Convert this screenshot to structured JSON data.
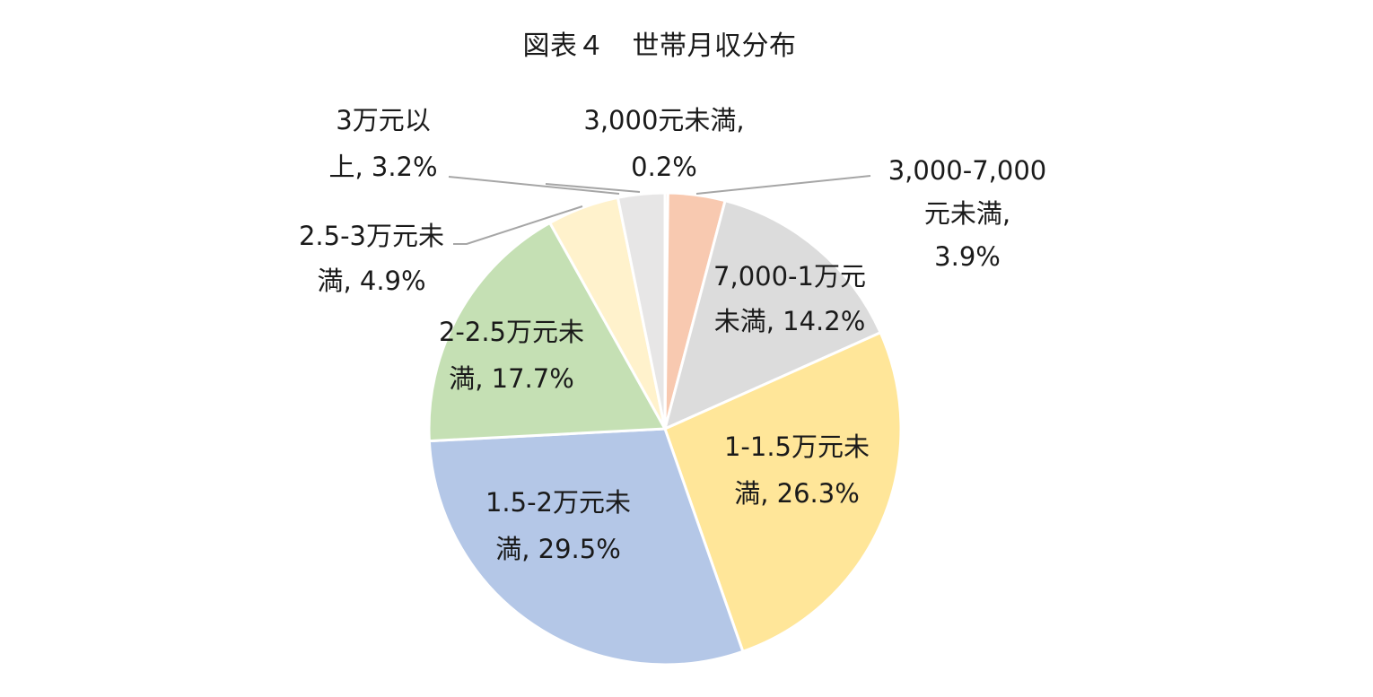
{
  "chart_data": {
    "type": "pie",
    "title": "図表４　世帯月収分布",
    "unit": "%",
    "start_angle_deg": 0,
    "direction": "clockwise",
    "slices": [
      {
        "category": "3,000元未満",
        "value": 0.2,
        "color": "#f8c9b0",
        "label_lines": [
          "3,000元未満,",
          "0.2%"
        ]
      },
      {
        "category": "3,000-7,000元未満",
        "value": 3.9,
        "color": "#f8c9b0",
        "label_lines": [
          "3,000-7,000",
          "元未満,",
          "3.9%"
        ]
      },
      {
        "category": "7,000-1万元未満",
        "value": 14.2,
        "color": "#dcdcdc",
        "label_lines": [
          "7,000-1万元",
          "未満, 14.2%"
        ]
      },
      {
        "category": "1-1.5万元未満",
        "value": 26.3,
        "color": "#ffe699",
        "label_lines": [
          "1-1.5万元未",
          "満, 26.3%"
        ]
      },
      {
        "category": "1.5-2万元未満",
        "value": 29.5,
        "color": "#b4c7e7",
        "label_lines": [
          "1.5-2万元未",
          "満, 29.5%"
        ]
      },
      {
        "category": "2-2.5万元未満",
        "value": 17.7,
        "color": "#c5e0b4",
        "label_lines": [
          "2-2.5万元未",
          "満, 17.7%"
        ]
      },
      {
        "category": "2.5-3万元未満",
        "value": 4.9,
        "color": "#fff2cc",
        "label_lines": [
          "2.5-3万元未",
          "満, 4.9%"
        ]
      },
      {
        "category": "3万元以上",
        "value": 3.2,
        "color": "#e7e6e6",
        "label_lines": [
          "3万元以",
          "上, 3.2%"
        ]
      }
    ]
  }
}
